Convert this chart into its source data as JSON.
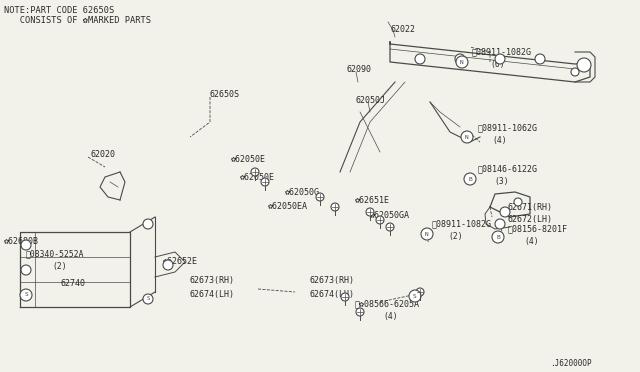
{
  "bg_color": "#f2f2ea",
  "line_color": "#4a4a4a",
  "text_color": "#2a2a2a",
  "note_line1": "NOTE:PART CODE 62650S",
  "note_line2": "   CONSISTS OF ✿MARKED PARTS",
  "diagram_id": ".J62000OP"
}
